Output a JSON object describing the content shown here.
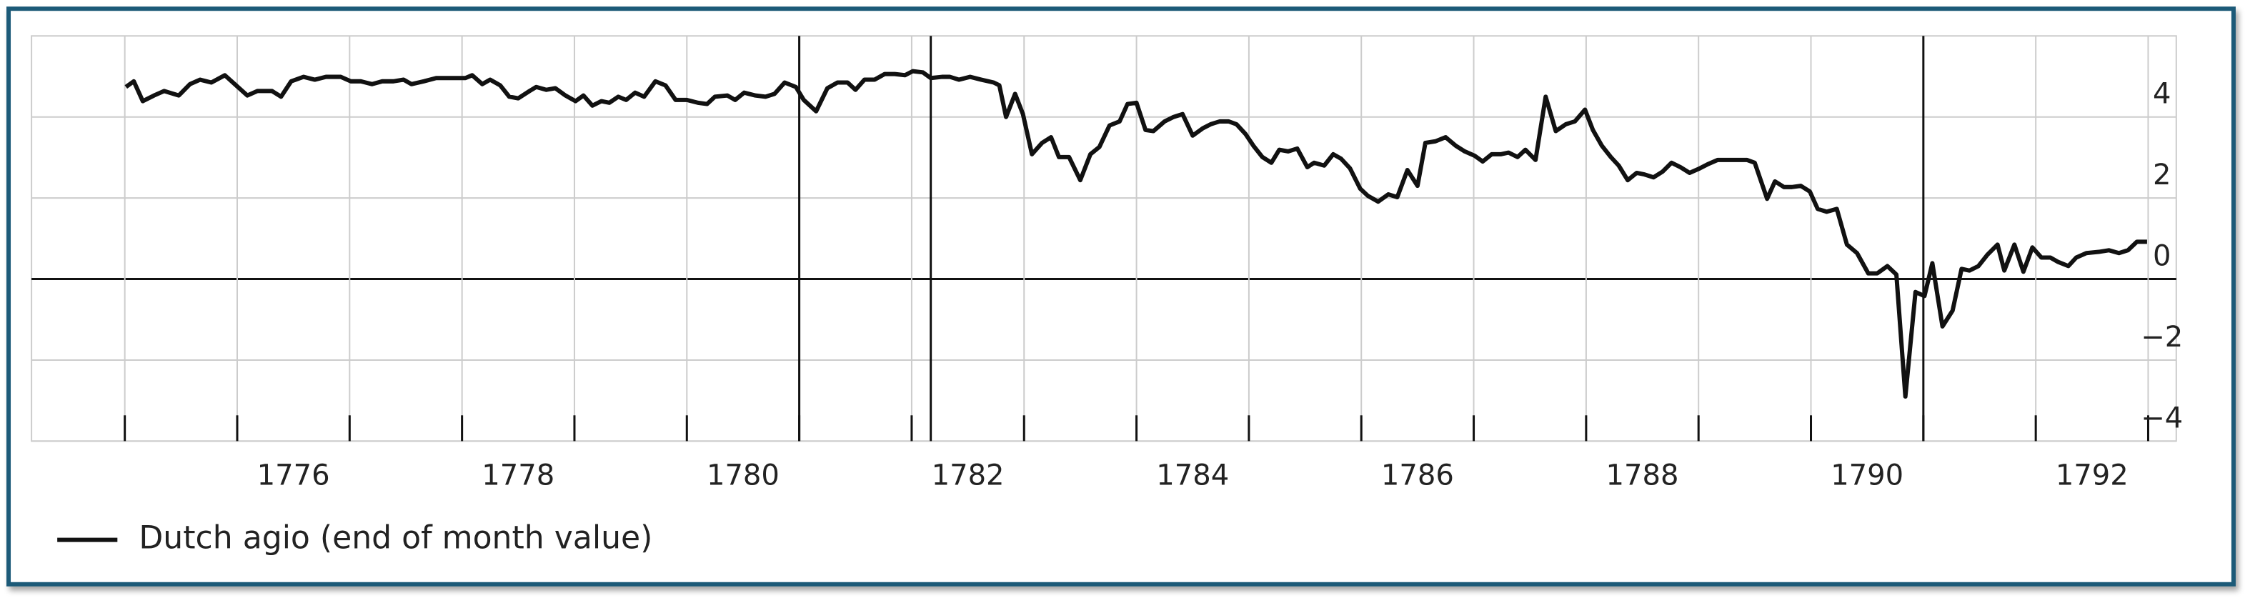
{
  "chart_data": {
    "type": "line",
    "x": [
      1775.01,
      1775.08,
      1775.16,
      1775.26,
      1775.35,
      1775.48,
      1775.58,
      1775.67,
      1775.77,
      1775.89,
      1775.99,
      1776.09,
      1776.18,
      1776.31,
      1776.39,
      1776.48,
      1776.59,
      1776.69,
      1776.79,
      1776.92,
      1777.01,
      1777.1,
      1777.2,
      1777.29,
      1777.39,
      1777.48,
      1777.55,
      1777.66,
      1777.77,
      1777.9,
      1778.03,
      1778.09,
      1778.18,
      1778.25,
      1778.34,
      1778.42,
      1778.5,
      1778.6,
      1778.66,
      1778.75,
      1778.83,
      1778.92,
      1779.01,
      1779.08,
      1779.16,
      1779.24,
      1779.31,
      1779.39,
      1779.46,
      1779.54,
      1779.62,
      1779.72,
      1779.81,
      1779.9,
      1780.0,
      1780.1,
      1780.18,
      1780.25,
      1780.36,
      1780.43,
      1780.51,
      1780.61,
      1780.7,
      1780.78,
      1780.87,
      1780.97,
      1781.04,
      1781.15,
      1781.25,
      1781.34,
      1781.43,
      1781.5,
      1781.58,
      1781.67,
      1781.76,
      1781.85,
      1781.94,
      1782.01,
      1782.1,
      1782.17,
      1782.27,
      1782.34,
      1782.42,
      1782.52,
      1782.62,
      1782.73,
      1782.78,
      1782.84,
      1782.92,
      1782.99,
      1783.07,
      1783.16,
      1783.24,
      1783.31,
      1783.4,
      1783.5,
      1783.59,
      1783.67,
      1783.76,
      1783.85,
      1783.92,
      1784.0,
      1784.08,
      1784.15,
      1784.25,
      1784.33,
      1784.41,
      1784.5,
      1784.59,
      1784.66,
      1784.74,
      1784.82,
      1784.89,
      1784.97,
      1785.04,
      1785.12,
      1785.2,
      1785.27,
      1785.35,
      1785.43,
      1785.52,
      1785.58,
      1785.67,
      1785.75,
      1785.82,
      1785.9,
      1785.99,
      1786.06,
      1786.15,
      1786.24,
      1786.32,
      1786.41,
      1786.5,
      1786.57,
      1786.66,
      1786.75,
      1786.84,
      1786.92,
      1787.01,
      1787.08,
      1787.16,
      1787.24,
      1787.31,
      1787.39,
      1787.46,
      1787.55,
      1787.64,
      1787.73,
      1787.82,
      1787.9,
      1787.99,
      1788.06,
      1788.14,
      1788.22,
      1788.29,
      1788.37,
      1788.45,
      1788.52,
      1788.6,
      1788.68,
      1788.76,
      1788.84,
      1788.92,
      1789.01,
      1789.08,
      1789.17,
      1789.26,
      1789.35,
      1789.43,
      1789.5,
      1789.61,
      1789.68,
      1789.76,
      1789.83,
      1789.91,
      1789.99,
      1790.06,
      1790.14,
      1790.23,
      1790.32,
      1790.41,
      1790.51,
      1790.59,
      1790.68,
      1790.76,
      1790.84,
      1790.93,
      1791.01,
      1791.08,
      1791.17,
      1791.26,
      1791.34,
      1791.41,
      1791.49,
      1791.57,
      1791.66,
      1791.72,
      1791.81,
      1791.89,
      1791.97,
      1792.05,
      1792.13,
      1792.2,
      1792.29,
      1792.36,
      1792.45,
      1792.56,
      1792.65,
      1792.74,
      1792.82,
      1792.9,
      1792.99
    ],
    "series": [
      {
        "name": "Dutch agio (end of month value)",
        "color": "#111111",
        "values": [
          4.74,
          4.88,
          4.39,
          4.53,
          4.64,
          4.53,
          4.81,
          4.92,
          4.85,
          5.03,
          4.78,
          4.53,
          4.64,
          4.64,
          4.5,
          4.88,
          4.99,
          4.92,
          4.99,
          4.99,
          4.88,
          4.88,
          4.81,
          4.88,
          4.88,
          4.92,
          4.81,
          4.88,
          4.96,
          4.96,
          4.96,
          5.03,
          4.81,
          4.92,
          4.78,
          4.5,
          4.46,
          4.64,
          4.74,
          4.67,
          4.71,
          4.53,
          4.39,
          4.53,
          4.28,
          4.39,
          4.35,
          4.5,
          4.42,
          4.6,
          4.5,
          4.88,
          4.78,
          4.42,
          4.42,
          4.35,
          4.32,
          4.5,
          4.53,
          4.42,
          4.6,
          4.53,
          4.5,
          4.57,
          4.85,
          4.74,
          4.42,
          4.14,
          4.71,
          4.85,
          4.85,
          4.67,
          4.92,
          4.92,
          5.06,
          5.06,
          5.03,
          5.13,
          5.1,
          4.96,
          4.99,
          4.99,
          4.92,
          4.99,
          4.92,
          4.85,
          4.78,
          4.0,
          4.57,
          4.07,
          3.08,
          3.36,
          3.5,
          3.01,
          3.01,
          2.44,
          3.08,
          3.26,
          3.79,
          3.89,
          4.32,
          4.35,
          3.68,
          3.65,
          3.89,
          4.0,
          4.07,
          3.54,
          3.72,
          3.82,
          3.89,
          3.89,
          3.82,
          3.58,
          3.29,
          3.01,
          2.87,
          3.19,
          3.15,
          3.22,
          2.76,
          2.87,
          2.8,
          3.08,
          2.97,
          2.73,
          2.23,
          2.05,
          1.91,
          2.09,
          2.02,
          2.69,
          2.3,
          3.36,
          3.4,
          3.5,
          3.29,
          3.15,
          3.04,
          2.9,
          3.08,
          3.08,
          3.12,
          3.01,
          3.19,
          2.94,
          4.5,
          3.65,
          3.82,
          3.89,
          4.18,
          3.68,
          3.29,
          3.01,
          2.8,
          2.44,
          2.62,
          2.58,
          2.51,
          2.65,
          2.87,
          2.76,
          2.62,
          2.73,
          2.83,
          2.94,
          2.94,
          2.94,
          2.94,
          2.87,
          1.98,
          2.41,
          2.27,
          2.27,
          2.3,
          2.16,
          1.73,
          1.66,
          1.73,
          0.85,
          0.64,
          0.14,
          0.14,
          0.32,
          0.11,
          -2.9,
          -0.32,
          -0.42,
          0.39,
          -1.17,
          -0.78,
          0.25,
          0.21,
          0.32,
          0.6,
          0.85,
          0.21,
          0.85,
          0.18,
          0.78,
          0.53,
          0.53,
          0.42,
          0.32,
          0.53,
          0.64,
          0.67,
          0.71,
          0.64,
          0.71,
          0.92,
          0.92
        ]
      }
    ],
    "xlim": [
      1774.17,
      1793.25
    ],
    "xticks": [
      {
        "value": 1776.5,
        "label": "1776"
      },
      {
        "value": 1778.5,
        "label": "1778"
      },
      {
        "value": 1780.5,
        "label": "1780"
      },
      {
        "value": 1782.5,
        "label": "1782"
      },
      {
        "value": 1784.5,
        "label": "1784"
      },
      {
        "value": 1786.5,
        "label": "1786"
      },
      {
        "value": 1788.5,
        "label": "1788"
      },
      {
        "value": 1790.5,
        "label": "1790"
      },
      {
        "value": 1792.5,
        "label": "1792"
      }
    ],
    "minor_xticks": [
      1775,
      1776,
      1777,
      1778,
      1779,
      1780,
      1781,
      1782,
      1783,
      1784,
      1785,
      1786,
      1787,
      1788,
      1789,
      1790,
      1791,
      1792,
      1793
    ],
    "vlines": [
      1781,
      1782.17,
      1791
    ],
    "ylim": [
      -4,
      6
    ],
    "yticks": [
      {
        "value": -4,
        "label": "−4"
      },
      {
        "value": -2,
        "label": "−2"
      },
      0,
      2,
      4
    ],
    "grid": true,
    "legend": "bottom-left"
  }
}
